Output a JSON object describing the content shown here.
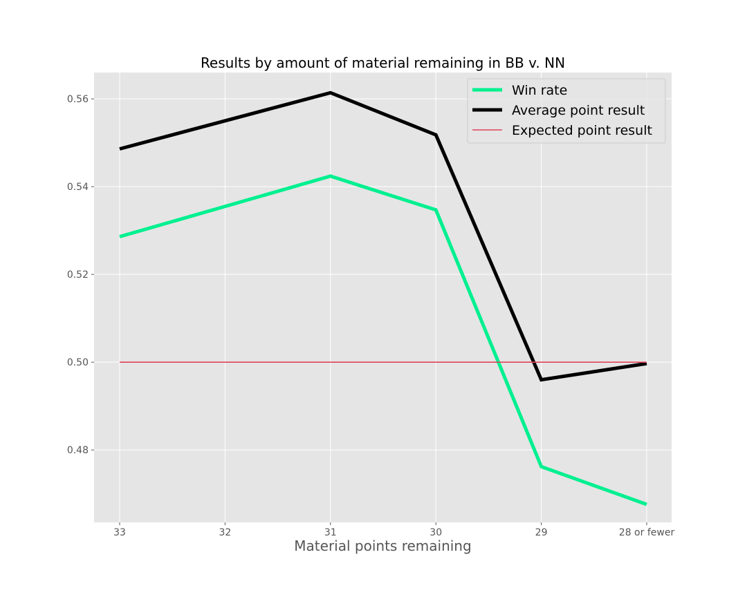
{
  "chart_data": {
    "type": "line",
    "title": "Results by amount of material remaining in BB v. NN",
    "xlabel": "Material points remaining",
    "ylabel": "",
    "categories": [
      "33",
      "32",
      "31",
      "30",
      "29",
      "28 or fewer"
    ],
    "ylim": [
      0.4635,
      0.566
    ],
    "yticks": [
      0.48,
      0.5,
      0.52,
      0.54,
      0.56
    ],
    "ytick_labels": [
      "0.48",
      "0.50",
      "0.52",
      "0.54",
      "0.56"
    ],
    "grid": true,
    "legend_position": "top-right",
    "series": [
      {
        "name": "Win rate",
        "color": "#00F090",
        "line_weight": "thick",
        "points": [
          {
            "x": "33",
            "y": 0.5286
          },
          {
            "x": "31",
            "y": 0.5424
          },
          {
            "x": "30",
            "y": 0.5347
          },
          {
            "x": "29",
            "y": 0.4762
          },
          {
            "x": "28 or fewer",
            "y": 0.4676
          }
        ]
      },
      {
        "name": "Average point result",
        "color": "#000000",
        "line_weight": "thick",
        "points": [
          {
            "x": "33",
            "y": 0.5486
          },
          {
            "x": "31",
            "y": 0.5614
          },
          {
            "x": "30",
            "y": 0.5518
          },
          {
            "x": "29",
            "y": 0.496
          },
          {
            "x": "28 or fewer",
            "y": 0.4997
          }
        ]
      },
      {
        "name": "Expected point result",
        "color": "#E0435A",
        "line_weight": "thin",
        "points": [
          {
            "x": "33",
            "y": 0.5
          },
          {
            "x": "28 or fewer",
            "y": 0.5
          }
        ]
      }
    ]
  },
  "colors": {
    "plot_background": "#E5E5E5",
    "grid": "#FFFFFF",
    "legend_background": "#E5E5E5",
    "legend_border": "#CCCCCC"
  }
}
